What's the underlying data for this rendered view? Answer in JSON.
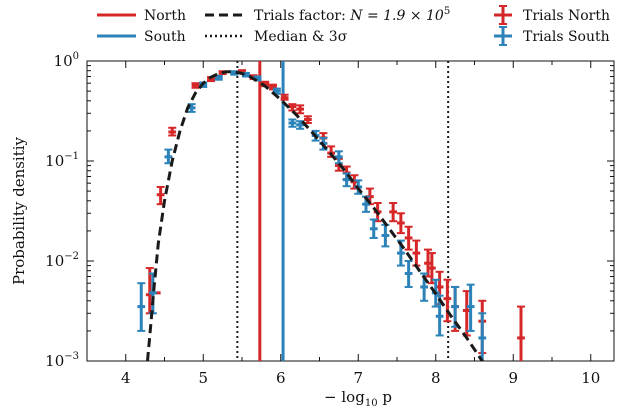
{
  "chart_data": {
    "type": "scatter",
    "xlabel": "− log",
    "xlabel_sub": "10",
    "xlabel_var": " p",
    "ylabel": "Probability densitiy",
    "xlim": [
      3.5,
      10.3
    ],
    "ylim": [
      0.001,
      1.0
    ],
    "y_scale": "log",
    "x_ticks": [
      4,
      5,
      6,
      7,
      8,
      9,
      10
    ],
    "x_tick_labels": [
      "4",
      "5",
      "6",
      "7",
      "8",
      "9",
      "10"
    ],
    "y_ticks": [
      0.001,
      0.01,
      0.1,
      1.0
    ],
    "y_tick_labels": [
      {
        "base": "10",
        "exp": "−3"
      },
      {
        "base": "10",
        "exp": "−2"
      },
      {
        "base": "10",
        "exp": "−1"
      },
      {
        "base": "10",
        "exp": "0"
      }
    ],
    "grid": false,
    "legend_position": "top",
    "colors": {
      "north": "#d62728",
      "south": "#2b83ba",
      "fit": "#1a1a1a"
    },
    "vertical_lines": [
      {
        "name": "North",
        "x": 5.73,
        "color": "#d62728",
        "style": "solid"
      },
      {
        "name": "South",
        "x": 6.03,
        "color": "#2b83ba",
        "style": "solid"
      },
      {
        "name": "Median & 3σ",
        "x": 5.44,
        "style": "dotted"
      },
      {
        "name": "Median & 3σ",
        "x": 8.16,
        "style": "dotted"
      }
    ],
    "legend": {
      "north": "North",
      "south": "South",
      "trials_factor": "Trials factor: ",
      "trials_formula": "N = 1.9 × 10",
      "trials_exp": "5",
      "median": "Median & 3σ",
      "trials_north": "Trials North",
      "trials_south": "Trials South"
    },
    "series": [
      {
        "name": "Trials North",
        "x_err": 0.05,
        "points": [
          [
            4.31,
            0.0046,
            0.003,
            0.0085
          ],
          [
            4.4,
            0.0048,
            0.0,
            0.0
          ],
          [
            4.45,
            0.046,
            0.037,
            0.055
          ],
          [
            4.6,
            0.195,
            0.18,
            0.215
          ],
          [
            4.9,
            0.57,
            0.54,
            0.6
          ],
          [
            5.1,
            0.66,
            0.63,
            0.69
          ],
          [
            5.25,
            0.76,
            0.74,
            0.79
          ],
          [
            5.5,
            0.78,
            0.75,
            0.81
          ],
          [
            5.65,
            0.69,
            0.66,
            0.72
          ],
          [
            5.8,
            0.59,
            0.56,
            0.62
          ],
          [
            5.9,
            0.55,
            0.52,
            0.58
          ],
          [
            6.05,
            0.43,
            0.41,
            0.46
          ],
          [
            6.15,
            0.35,
            0.32,
            0.37
          ],
          [
            6.25,
            0.33,
            0.3,
            0.36
          ],
          [
            6.35,
            0.26,
            0.24,
            0.28
          ],
          [
            6.55,
            0.17,
            0.15,
            0.19
          ],
          [
            6.65,
            0.12,
            0.11,
            0.14
          ],
          [
            6.75,
            0.09,
            0.08,
            0.105
          ],
          [
            6.85,
            0.076,
            0.066,
            0.088
          ],
          [
            6.95,
            0.062,
            0.053,
            0.072
          ],
          [
            7.15,
            0.044,
            0.037,
            0.053
          ],
          [
            7.25,
            0.031,
            0.025,
            0.038
          ],
          [
            7.45,
            0.031,
            0.025,
            0.038
          ],
          [
            7.55,
            0.024,
            0.019,
            0.03
          ],
          [
            7.65,
            0.017,
            0.013,
            0.022
          ],
          [
            7.75,
            0.012,
            0.009,
            0.016
          ],
          [
            7.9,
            0.0095,
            0.007,
            0.013
          ],
          [
            7.95,
            0.0085,
            0.006,
            0.012
          ],
          [
            8.05,
            0.0055,
            0.0037,
            0.0078
          ],
          [
            8.15,
            0.0042,
            0.0025,
            0.0065
          ],
          [
            8.25,
            0.0035,
            0.002,
            0.0055
          ],
          [
            8.4,
            0.0032,
            0.0018,
            0.005
          ],
          [
            8.6,
            0.0025,
            0.0012,
            0.004
          ],
          [
            9.1,
            0.0017,
            0.0005,
            0.0035
          ]
        ]
      },
      {
        "name": "Trials South",
        "x_err": 0.05,
        "points": [
          [
            4.2,
            0.0035,
            0.002,
            0.006
          ],
          [
            4.35,
            0.0048,
            0.003,
            0.0075
          ],
          [
            4.55,
            0.11,
            0.095,
            0.13
          ],
          [
            4.85,
            0.34,
            0.31,
            0.37
          ],
          [
            5.0,
            0.58,
            0.55,
            0.61
          ],
          [
            5.2,
            0.68,
            0.65,
            0.71
          ],
          [
            5.4,
            0.76,
            0.73,
            0.79
          ],
          [
            5.55,
            0.73,
            0.7,
            0.76
          ],
          [
            5.7,
            0.67,
            0.64,
            0.7
          ],
          [
            5.95,
            0.5,
            0.47,
            0.53
          ],
          [
            6.15,
            0.24,
            0.22,
            0.26
          ],
          [
            6.25,
            0.23,
            0.21,
            0.25
          ],
          [
            6.45,
            0.18,
            0.16,
            0.2
          ],
          [
            6.55,
            0.15,
            0.13,
            0.17
          ],
          [
            6.75,
            0.11,
            0.095,
            0.125
          ],
          [
            6.85,
            0.065,
            0.056,
            0.075
          ],
          [
            7.0,
            0.055,
            0.047,
            0.064
          ],
          [
            7.1,
            0.037,
            0.031,
            0.044
          ],
          [
            7.2,
            0.021,
            0.017,
            0.026
          ],
          [
            7.35,
            0.018,
            0.014,
            0.023
          ],
          [
            7.55,
            0.012,
            0.009,
            0.016
          ],
          [
            7.65,
            0.0075,
            0.0055,
            0.01
          ],
          [
            7.85,
            0.0055,
            0.004,
            0.0075
          ],
          [
            8.0,
            0.0048,
            0.0035,
            0.0065
          ],
          [
            8.05,
            0.0028,
            0.0018,
            0.0045
          ],
          [
            8.25,
            0.0035,
            0.0022,
            0.0055
          ],
          [
            8.45,
            0.0035,
            0.002,
            0.0058
          ],
          [
            8.6,
            0.0017,
            0.0008,
            0.003
          ]
        ]
      }
    ],
    "fit_curve": {
      "name": "Trials factor",
      "points": [
        [
          4.28,
          0.001
        ],
        [
          4.32,
          0.0022
        ],
        [
          4.36,
          0.005
        ],
        [
          4.42,
          0.015
        ],
        [
          4.5,
          0.04
        ],
        [
          4.6,
          0.1
        ],
        [
          4.7,
          0.2
        ],
        [
          4.8,
          0.34
        ],
        [
          4.9,
          0.48
        ],
        [
          5.0,
          0.6
        ],
        [
          5.1,
          0.69
        ],
        [
          5.2,
          0.75
        ],
        [
          5.3,
          0.78
        ],
        [
          5.4,
          0.78
        ],
        [
          5.5,
          0.75
        ],
        [
          5.6,
          0.7
        ],
        [
          5.7,
          0.63
        ],
        [
          5.8,
          0.56
        ],
        [
          5.9,
          0.48
        ],
        [
          6.0,
          0.41
        ],
        [
          6.2,
          0.29
        ],
        [
          6.4,
          0.195
        ],
        [
          6.6,
          0.13
        ],
        [
          6.8,
          0.085
        ],
        [
          7.0,
          0.053
        ],
        [
          7.2,
          0.034
        ],
        [
          7.4,
          0.021
        ],
        [
          7.6,
          0.013
        ],
        [
          7.8,
          0.0078
        ],
        [
          8.0,
          0.0047
        ],
        [
          8.2,
          0.0028
        ],
        [
          8.4,
          0.0017
        ],
        [
          8.6,
          0.001
        ],
        [
          8.8,
          0.00065
        ]
      ]
    }
  }
}
